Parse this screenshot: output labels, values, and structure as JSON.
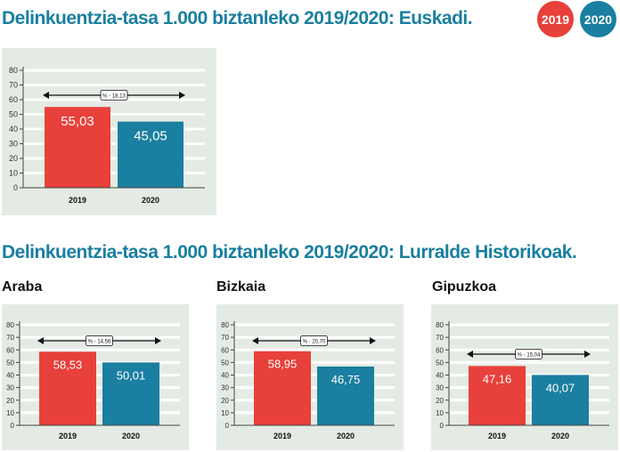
{
  "titles": {
    "main": "Delinkuentzia-tasa 1.000 biztanleko 2019/2020: Euskadi.",
    "sub": "Delinkuentzia-tasa 1.000 biztanleko 2019/2020: Lurralde Historikoak."
  },
  "legend": [
    {
      "label": "2019",
      "color": "#e8403a"
    },
    {
      "label": "2020",
      "color": "#1a7fa0"
    }
  ],
  "colors": {
    "y2019": "#e8403a",
    "y2020": "#1a7fa0",
    "panel_bg": "#e4ebe4",
    "title": "#1a7fa0"
  },
  "chart_data": [
    {
      "type": "bar",
      "region": "",
      "categories": [
        "2019",
        "2020"
      ],
      "values": [
        55.03,
        45.05
      ],
      "data_labels": [
        "55,03",
        "45,05"
      ],
      "annotation": "% - 18,13",
      "ylim": [
        0,
        80
      ],
      "yticks": [
        "0",
        "10",
        "20",
        "30",
        "40",
        "50",
        "60",
        "70",
        "80"
      ],
      "grid": true
    },
    {
      "type": "bar",
      "region": "Araba",
      "categories": [
        "2019",
        "2020"
      ],
      "values": [
        58.53,
        50.01
      ],
      "data_labels": [
        "58,53",
        "50,01"
      ],
      "annotation": "% - 14,56",
      "ylim": [
        0,
        80
      ],
      "yticks": [
        "0",
        "10",
        "20",
        "30",
        "40",
        "50",
        "60",
        "70",
        "80"
      ],
      "grid": true
    },
    {
      "type": "bar",
      "region": "Bizkaia",
      "categories": [
        "2019",
        "2020"
      ],
      "values": [
        58.95,
        46.75
      ],
      "data_labels": [
        "58,95",
        "46,75"
      ],
      "annotation": "% - 20,70",
      "ylim": [
        0,
        80
      ],
      "yticks": [
        "0",
        "10",
        "20",
        "30",
        "40",
        "50",
        "60",
        "70",
        "80"
      ],
      "grid": true
    },
    {
      "type": "bar",
      "region": "Gipuzkoa",
      "categories": [
        "2019",
        "2020"
      ],
      "values": [
        47.16,
        40.07
      ],
      "data_labels": [
        "47,16",
        "40,07"
      ],
      "annotation": "% - 15,04",
      "ylim": [
        0,
        80
      ],
      "yticks": [
        "0",
        "10",
        "20",
        "30",
        "40",
        "50",
        "60",
        "70",
        "80"
      ],
      "grid": true
    }
  ]
}
